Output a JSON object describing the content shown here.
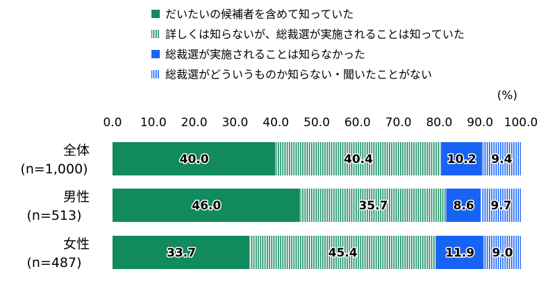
{
  "chart_data": {
    "type": "bar",
    "orientation": "horizontal",
    "stacked": true,
    "unit_label": "(%)",
    "xlim": [
      0,
      100
    ],
    "x_ticks": [
      "0.0",
      "10.0",
      "20.0",
      "30.0",
      "40.0",
      "50.0",
      "60.0",
      "70.0",
      "80.0",
      "90.0",
      "100.0"
    ],
    "categories": [
      {
        "name": "全体",
        "n": "(n=1,000)"
      },
      {
        "name": "男性",
        "n": "(n=513)"
      },
      {
        "name": "女性",
        "n": "(n=487)"
      }
    ],
    "series": [
      {
        "name": "だいたいの候補者を含めて知っていた",
        "color": "#118a5e",
        "pattern": "solid",
        "values": [
          40.0,
          46.0,
          33.7
        ],
        "labels": [
          "40.0",
          "46.0",
          "33.7"
        ]
      },
      {
        "name": "詳しくは知らないが、総裁選が実施されることは知っていた",
        "color": "#118a5e",
        "pattern": "vertical-lines",
        "values": [
          40.4,
          35.7,
          45.4
        ],
        "labels": [
          "40.4",
          "35.7",
          "45.4"
        ]
      },
      {
        "name": "総裁選が実施されることは知らなかった",
        "color": "#1763f5",
        "pattern": "solid",
        "values": [
          10.2,
          8.6,
          11.9
        ],
        "labels": [
          "10.2",
          "8.6",
          "11.9"
        ]
      },
      {
        "name": "総裁選がどういうものか知らない・聞いたことがない",
        "color": "#1763f5",
        "pattern": "vertical-lines",
        "values": [
          9.4,
          9.7,
          9.0
        ],
        "labels": [
          "9.4",
          "9.7",
          "9.0"
        ]
      }
    ],
    "legend_position": "top-center",
    "grid": false
  }
}
